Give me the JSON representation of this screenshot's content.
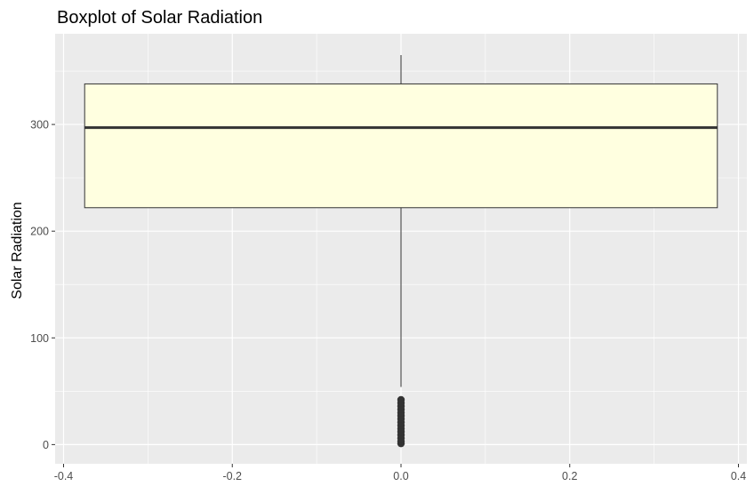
{
  "chart_data": {
    "type": "boxplot",
    "title": "Boxplot of Solar Radiation",
    "xlabel": "",
    "ylabel": "Solar Radiation",
    "x": 0,
    "xlim": [
      -0.41,
      0.41
    ],
    "ylim": [
      -18,
      385
    ],
    "x_ticks": [
      -0.4,
      -0.2,
      0.0,
      0.2,
      0.4
    ],
    "x_tick_labels": [
      "-0.4",
      "-0.2",
      "0.0",
      "0.2",
      "0.4"
    ],
    "y_ticks": [
      0,
      100,
      200,
      300
    ],
    "y_tick_labels": [
      "0",
      "100",
      "200",
      "300"
    ],
    "box": {
      "x_left": -0.375,
      "x_right": 0.375,
      "q1": 222,
      "median": 297,
      "q3": 338,
      "whisker_low": 54,
      "whisker_high": 365
    },
    "outliers": [
      1,
      3,
      6,
      9,
      12,
      15,
      18,
      21,
      24,
      27,
      30,
      33,
      36,
      39,
      42
    ],
    "colors": {
      "panel_background": "#ebebeb",
      "grid": "#ffffff",
      "box_fill": "#ffffe0",
      "box_outline": "#333333",
      "outlier": "#333333"
    },
    "grid": true,
    "legend": "none"
  }
}
